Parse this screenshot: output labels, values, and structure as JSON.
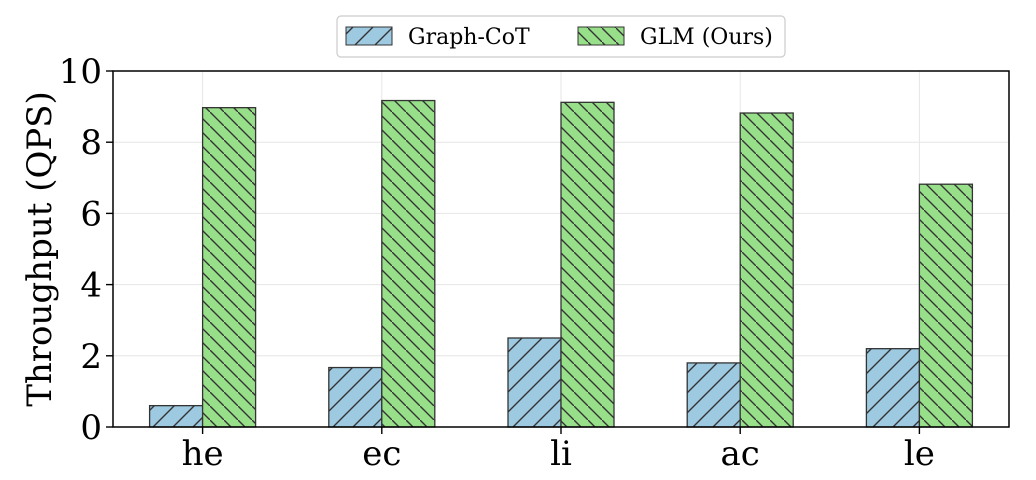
{
  "chart_data": {
    "type": "bar",
    "title": "",
    "xlabel": "",
    "ylabel": "Throughput (QPS)",
    "ylim": [
      0,
      10
    ],
    "yticks": [
      0,
      2,
      4,
      6,
      8,
      10
    ],
    "categories": [
      "he",
      "ec",
      "li",
      "ac",
      "le"
    ],
    "series": [
      {
        "name": "Graph-CoT",
        "values": [
          0.6,
          1.67,
          2.5,
          1.8,
          2.2
        ],
        "color": "#9ecae1",
        "hatch": "forward-diagonal"
      },
      {
        "name": "GLM (Ours)",
        "values": [
          8.97,
          9.17,
          9.12,
          8.82,
          6.82
        ],
        "color": "#98df8a",
        "hatch": "back-diagonal"
      }
    ],
    "grid": true,
    "legend_position": "top-center"
  }
}
